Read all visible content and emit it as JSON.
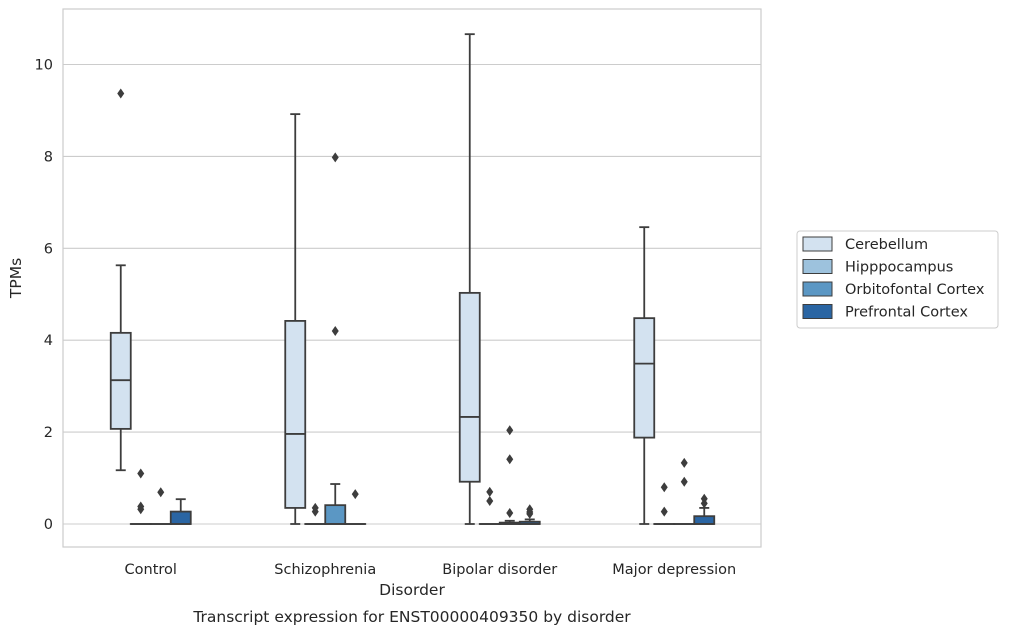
{
  "chart_data": {
    "type": "boxplot",
    "caption": "Transcript expression for ENST00000409350 by disorder",
    "xlabel": "Disorder",
    "ylabel": "TPMs",
    "ylim": [
      -0.5,
      11.2
    ],
    "yticks": [
      0,
      2,
      4,
      6,
      8,
      10
    ],
    "grid": "horizontal",
    "legend_position": "right",
    "categories": [
      "Control",
      "Schizophrenia",
      "Bipolar disorder",
      "Major depression"
    ],
    "series": [
      {
        "name": "Cerebellum",
        "color": "#d3e2f0",
        "boxes": [
          {
            "whisker_low": 1.17,
            "q1": 2.07,
            "median": 3.13,
            "q3": 4.16,
            "whisker_high": 5.63,
            "outliers": [
              9.37
            ]
          },
          {
            "whisker_low": 0.0,
            "q1": 0.35,
            "median": 1.96,
            "q3": 4.42,
            "whisker_high": 8.92,
            "outliers": []
          },
          {
            "whisker_low": 0.0,
            "q1": 0.92,
            "median": 2.33,
            "q3": 5.03,
            "whisker_high": 10.66,
            "outliers": []
          },
          {
            "whisker_low": 0.0,
            "q1": 1.88,
            "median": 3.49,
            "q3": 4.48,
            "whisker_high": 6.46,
            "outliers": []
          }
        ]
      },
      {
        "name": "Hipppocampus",
        "color": "#9dc2dd",
        "boxes": [
          {
            "whisker_low": 0.0,
            "q1": 0.0,
            "median": 0.0,
            "q3": 0.0,
            "whisker_high": 0.0,
            "outliers": [
              1.1,
              0.38,
              0.32
            ]
          },
          {
            "whisker_low": 0.0,
            "q1": 0.0,
            "median": 0.0,
            "q3": 0.0,
            "whisker_high": 0.0,
            "outliers": [
              0.35,
              0.27
            ]
          },
          {
            "whisker_low": 0.0,
            "q1": 0.0,
            "median": 0.0,
            "q3": 0.0,
            "whisker_high": 0.0,
            "outliers": [
              0.7,
              0.5
            ]
          },
          {
            "whisker_low": 0.0,
            "q1": 0.0,
            "median": 0.0,
            "q3": 0.0,
            "whisker_high": 0.0,
            "outliers": [
              0.8,
              0.27
            ]
          }
        ]
      },
      {
        "name": "Orbitofontal Cortex",
        "color": "#5b97c4",
        "boxes": [
          {
            "whisker_low": 0.0,
            "q1": 0.0,
            "median": 0.0,
            "q3": 0.0,
            "whisker_high": 0.0,
            "outliers": [
              0.69
            ]
          },
          {
            "whisker_low": 0.0,
            "q1": 0.0,
            "median": 0.0,
            "q3": 0.41,
            "whisker_high": 0.87,
            "outliers": [
              7.98,
              4.2
            ]
          },
          {
            "whisker_low": 0.0,
            "q1": 0.0,
            "median": 0.0,
            "q3": 0.03,
            "whisker_high": 0.07,
            "outliers": [
              2.04,
              1.41,
              0.24
            ]
          },
          {
            "whisker_low": 0.0,
            "q1": 0.0,
            "median": 0.0,
            "q3": 0.0,
            "whisker_high": 0.0,
            "outliers": [
              1.33,
              0.92
            ]
          }
        ]
      },
      {
        "name": "Prefrontal Cortex",
        "color": "#2a65a3",
        "boxes": [
          {
            "whisker_low": 0.0,
            "q1": 0.0,
            "median": 0.0,
            "q3": 0.27,
            "whisker_high": 0.54,
            "outliers": []
          },
          {
            "whisker_low": 0.0,
            "q1": 0.0,
            "median": 0.0,
            "q3": 0.0,
            "whisker_high": 0.0,
            "outliers": [
              0.65
            ]
          },
          {
            "whisker_low": 0.0,
            "q1": 0.0,
            "median": 0.0,
            "q3": 0.05,
            "whisker_high": 0.1,
            "outliers": [
              0.32,
              0.26,
              0.22
            ]
          },
          {
            "whisker_low": 0.0,
            "q1": 0.0,
            "median": 0.0,
            "q3": 0.17,
            "whisker_high": 0.35,
            "outliers": [
              0.55,
              0.45
            ]
          }
        ]
      }
    ]
  }
}
